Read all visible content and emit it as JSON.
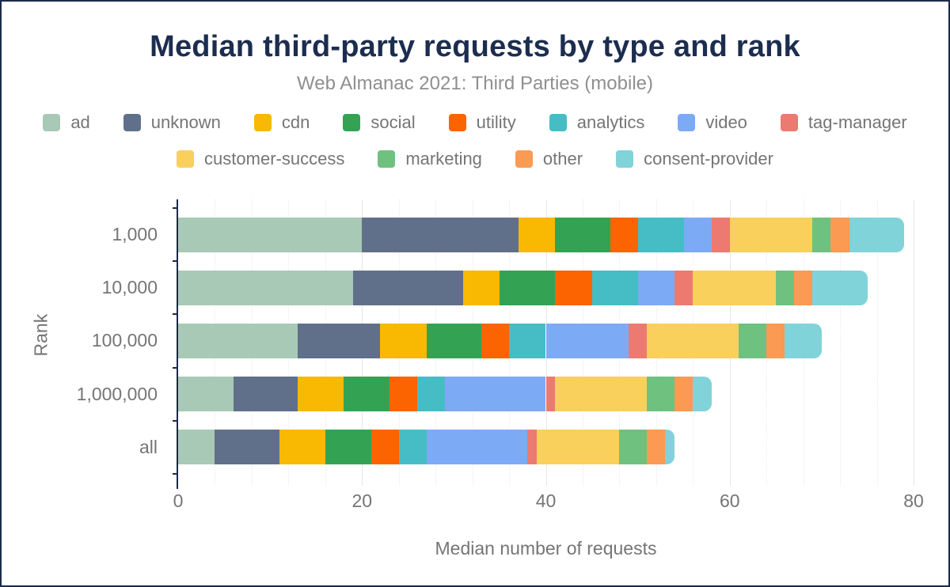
{
  "frame": {
    "background": "#ffffff",
    "border_color": "#1b2a4a"
  },
  "header": {
    "title": "Median third-party requests by type and rank",
    "subtitle": "Web Almanac 2021: Third Parties (mobile)",
    "title_color": "#1c2d4f",
    "subtitle_color": "#8f8f8f"
  },
  "chart_data": {
    "type": "bar",
    "orientation": "horizontal",
    "stacked": true,
    "title": "Median third-party requests by type and rank",
    "subtitle": "Web Almanac 2021: Third Parties (mobile)",
    "xlabel": "Median number of requests",
    "ylabel": "Rank",
    "categories": [
      "1,000",
      "10,000",
      "100,000",
      "1,000,000",
      "all"
    ],
    "series": [
      {
        "name": "ad",
        "color": "#a8c9b6",
        "values": [
          20,
          19,
          13,
          6,
          4
        ]
      },
      {
        "name": "unknown",
        "color": "#61708a",
        "values": [
          17,
          12,
          9,
          7,
          7
        ]
      },
      {
        "name": "cdn",
        "color": "#f9b801",
        "values": [
          4,
          4,
          5,
          5,
          5
        ]
      },
      {
        "name": "social",
        "color": "#33a353",
        "values": [
          6,
          6,
          6,
          5,
          5
        ]
      },
      {
        "name": "utility",
        "color": "#fb6400",
        "values": [
          3,
          4,
          3,
          3,
          3
        ]
      },
      {
        "name": "analytics",
        "color": "#46bdc4",
        "values": [
          5,
          5,
          4,
          3,
          3
        ]
      },
      {
        "name": "video",
        "color": "#7daaf5",
        "values": [
          3,
          4,
          9,
          11,
          11
        ]
      },
      {
        "name": "tag-manager",
        "color": "#ec7a70",
        "values": [
          2,
          2,
          2,
          1,
          1
        ]
      },
      {
        "name": "customer-success",
        "color": "#f9d05c",
        "values": [
          9,
          9,
          10,
          10,
          9
        ]
      },
      {
        "name": "marketing",
        "color": "#6fc17f",
        "values": [
          2,
          2,
          3,
          3,
          3
        ]
      },
      {
        "name": "other",
        "color": "#fb9a52",
        "values": [
          2,
          2,
          2,
          2,
          2
        ]
      },
      {
        "name": "consent-provider",
        "color": "#80d3d8",
        "values": [
          6,
          6,
          4,
          2,
          1
        ]
      }
    ],
    "totals": [
      79,
      75,
      70,
      58,
      54
    ],
    "xlim": [
      0,
      80
    ],
    "x_ticks": [
      0,
      20,
      40,
      60,
      80
    ],
    "x_tick_labels": [
      "0",
      "20",
      "40",
      "60",
      "80"
    ],
    "minor_grid_step": 4,
    "grid": true,
    "legend_position": "top",
    "legend_wrap_after": 8,
    "axis_line_color": "#1b2a4a",
    "grid_color": "#e7e7e7",
    "tick_label_color": "#757575"
  }
}
